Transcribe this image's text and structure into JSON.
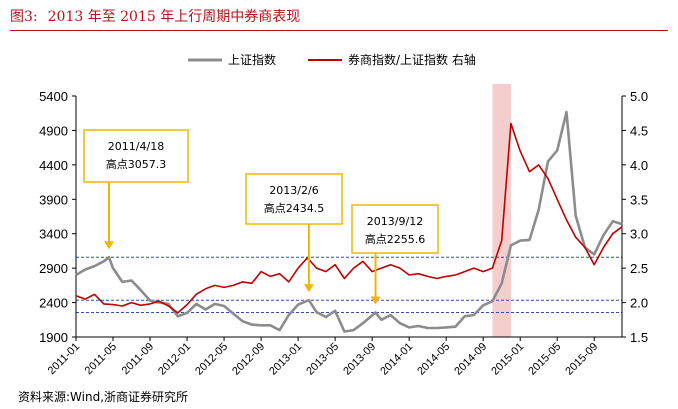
{
  "figure": {
    "number": "图3:",
    "title": "2013 年至 2015 年上行周期中券商表现",
    "source": "资料来源:Wind,浙商证券研究所"
  },
  "colors": {
    "index_line": "#8c8c8c",
    "ratio_line": "#c00000",
    "highlight": "#f2c4c4",
    "reference": "#2b4eb8",
    "annotation_border": "#f2b600",
    "annotation_arrow": "#f2b600",
    "title": "#b5121b"
  },
  "chart_data": {
    "type": "line",
    "legend": {
      "placement": "top-center"
    },
    "series": [
      {
        "name": "上证指数",
        "axis": "left",
        "color": "#8c8c8c",
        "points": [
          [
            "2011-01",
            2800
          ],
          [
            "2011-02",
            2880
          ],
          [
            "2011-03",
            2930
          ],
          [
            "2011-04",
            3000
          ],
          [
            "2011-04-18",
            3057.3
          ],
          [
            "2011-05",
            2900
          ],
          [
            "2011-06",
            2700
          ],
          [
            "2011-07",
            2720
          ],
          [
            "2011-08",
            2580
          ],
          [
            "2011-09",
            2430
          ],
          [
            "2011-10",
            2400
          ],
          [
            "2011-11",
            2380
          ],
          [
            "2011-12",
            2200
          ],
          [
            "2012-01",
            2250
          ],
          [
            "2012-02",
            2380
          ],
          [
            "2012-03",
            2300
          ],
          [
            "2012-04",
            2380
          ],
          [
            "2012-05",
            2350
          ],
          [
            "2012-06",
            2240
          ],
          [
            "2012-07",
            2130
          ],
          [
            "2012-08",
            2080
          ],
          [
            "2012-09",
            2070
          ],
          [
            "2012-10",
            2070
          ],
          [
            "2012-11",
            2000
          ],
          [
            "2012-12",
            2220
          ],
          [
            "2013-01",
            2370
          ],
          [
            "2013-02-06",
            2434.5
          ],
          [
            "2013-03",
            2260
          ],
          [
            "2013-04",
            2190
          ],
          [
            "2013-05",
            2280
          ],
          [
            "2013-06",
            1980
          ],
          [
            "2013-07",
            2000
          ],
          [
            "2013-08",
            2100
          ],
          [
            "2013-09-12",
            2255.6
          ],
          [
            "2013-10",
            2150
          ],
          [
            "2013-11",
            2220
          ],
          [
            "2013-12",
            2100
          ],
          [
            "2014-01",
            2040
          ],
          [
            "2014-02",
            2060
          ],
          [
            "2014-03",
            2030
          ],
          [
            "2014-04",
            2030
          ],
          [
            "2014-05",
            2040
          ],
          [
            "2014-06",
            2050
          ],
          [
            "2014-07",
            2200
          ],
          [
            "2014-08",
            2220
          ],
          [
            "2014-09",
            2360
          ],
          [
            "2014-10",
            2420
          ],
          [
            "2014-11",
            2680
          ],
          [
            "2014-12",
            3230
          ],
          [
            "2015-01",
            3300
          ],
          [
            "2015-02",
            3310
          ],
          [
            "2015-03",
            3750
          ],
          [
            "2015-04",
            4450
          ],
          [
            "2015-05",
            4610
          ],
          [
            "2015-06",
            5166
          ],
          [
            "2015-07",
            3660
          ],
          [
            "2015-08",
            3200
          ],
          [
            "2015-09",
            3100
          ],
          [
            "2015-10",
            3380
          ],
          [
            "2015-11",
            3580
          ],
          [
            "2015-12",
            3540
          ]
        ]
      },
      {
        "name": "券商指数/上证指数 右轴",
        "axis": "right",
        "color": "#c00000",
        "points": [
          [
            "2011-01",
            2.1
          ],
          [
            "2011-02",
            2.05
          ],
          [
            "2011-03",
            2.12
          ],
          [
            "2011-04",
            1.98
          ],
          [
            "2011-05",
            1.97
          ],
          [
            "2011-06",
            1.95
          ],
          [
            "2011-07",
            2.0
          ],
          [
            "2011-08",
            1.96
          ],
          [
            "2011-09",
            1.98
          ],
          [
            "2011-10",
            2.02
          ],
          [
            "2011-11",
            1.95
          ],
          [
            "2011-12",
            1.85
          ],
          [
            "2012-01",
            1.97
          ],
          [
            "2012-02",
            2.12
          ],
          [
            "2012-03",
            2.2
          ],
          [
            "2012-04",
            2.25
          ],
          [
            "2012-05",
            2.22
          ],
          [
            "2012-06",
            2.25
          ],
          [
            "2012-07",
            2.3
          ],
          [
            "2012-08",
            2.28
          ],
          [
            "2012-09",
            2.45
          ],
          [
            "2012-10",
            2.38
          ],
          [
            "2012-11",
            2.42
          ],
          [
            "2012-12",
            2.3
          ],
          [
            "2013-01",
            2.5
          ],
          [
            "2013-02",
            2.65
          ],
          [
            "2013-03",
            2.5
          ],
          [
            "2013-04",
            2.45
          ],
          [
            "2013-05",
            2.55
          ],
          [
            "2013-06",
            2.35
          ],
          [
            "2013-07",
            2.5
          ],
          [
            "2013-08",
            2.6
          ],
          [
            "2013-09",
            2.45
          ],
          [
            "2013-10",
            2.5
          ],
          [
            "2013-11",
            2.55
          ],
          [
            "2013-12",
            2.5
          ],
          [
            "2014-01",
            2.4
          ],
          [
            "2014-02",
            2.42
          ],
          [
            "2014-03",
            2.38
          ],
          [
            "2014-04",
            2.35
          ],
          [
            "2014-05",
            2.38
          ],
          [
            "2014-06",
            2.4
          ],
          [
            "2014-07",
            2.45
          ],
          [
            "2014-08",
            2.5
          ],
          [
            "2014-09",
            2.45
          ],
          [
            "2014-10",
            2.5
          ],
          [
            "2014-11",
            2.9
          ],
          [
            "2014-12",
            4.6
          ],
          [
            "2015-01",
            4.2
          ],
          [
            "2015-02",
            3.9
          ],
          [
            "2015-03",
            4.0
          ],
          [
            "2015-04",
            3.8
          ],
          [
            "2015-05",
            3.5
          ],
          [
            "2015-06",
            3.2
          ],
          [
            "2015-07",
            2.95
          ],
          [
            "2015-08",
            2.8
          ],
          [
            "2015-09",
            2.55
          ],
          [
            "2015-10",
            2.8
          ],
          [
            "2015-11",
            3.0
          ],
          [
            "2015-12",
            3.1
          ]
        ]
      }
    ],
    "yaxis_left": {
      "ticks": [
        "5400",
        "4900",
        "4400",
        "3900",
        "3400",
        "2900",
        "2400",
        "1900"
      ],
      "range": [
        1900,
        5400
      ]
    },
    "yaxis_right": {
      "ticks": [
        "5.0",
        "4.5",
        "4.0",
        "3.5",
        "3.0",
        "2.5",
        "2.0",
        "1.5"
      ],
      "range": [
        1.5,
        5.0
      ]
    },
    "xaxis": {
      "ticks": [
        "2011-01",
        "2011-05",
        "2011-09",
        "2012-01",
        "2012-05",
        "2012-09",
        "2013-01",
        "2013-05",
        "2013-09",
        "2014-01",
        "2014-05",
        "2014-09",
        "2015-01",
        "2015-05",
        "2015-09"
      ],
      "range": [
        "2011-01",
        "2015-12"
      ]
    },
    "highlight_band": {
      "from": "2014-10",
      "to": "2014-12"
    },
    "reference_lines": [
      {
        "axis": "left",
        "value": 3057.3
      },
      {
        "axis": "left",
        "value": 2434.5
      },
      {
        "axis": "left",
        "value": 2255.6
      }
    ],
    "annotations": [
      {
        "x": "2011-04-18",
        "value": 3057.3,
        "line1": "2011/4/18",
        "line2": "高点3057.3"
      },
      {
        "x": "2013-02-06",
        "value": 2434.5,
        "line1": "2013/2/6",
        "line2": "高点2434.5"
      },
      {
        "x": "2013-09-12",
        "value": 2255.6,
        "line1": "2013/9/12",
        "line2": "高点2255.6"
      }
    ]
  }
}
